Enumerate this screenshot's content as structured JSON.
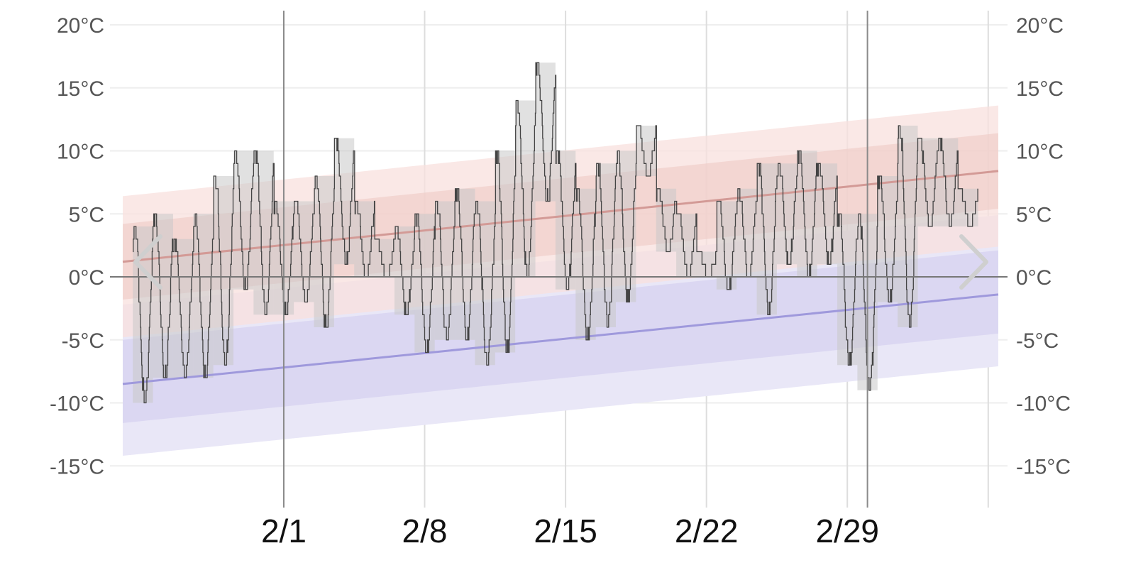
{
  "chart_data": {
    "type": "line",
    "title": "",
    "xlabel": "",
    "ylabel": "",
    "unit": "°C",
    "ylim": [
      -18,
      20.5
    ],
    "xlim": [
      "1/23",
      "3/7"
    ],
    "y_ticks": [
      {
        "value": 20,
        "label": "20°C"
      },
      {
        "value": 15,
        "label": "15°C"
      },
      {
        "value": 10,
        "label": "10°C"
      },
      {
        "value": 5,
        "label": "5°C"
      },
      {
        "value": 0,
        "label": "0°C"
      },
      {
        "value": -5,
        "label": "-5°C"
      },
      {
        "value": -10,
        "label": "-10°C"
      },
      {
        "value": -15,
        "label": "-15°C"
      }
    ],
    "x_ticks": [
      {
        "day": 9,
        "label": "2/1"
      },
      {
        "day": 16,
        "label": "2/8"
      },
      {
        "day": 23,
        "label": "2/15"
      },
      {
        "day": 30,
        "label": "2/22"
      },
      {
        "day": 37,
        "label": "2/29"
      }
    ],
    "extra_vertical_lines_day": [
      44
    ],
    "month_divider_days": [
      9,
      38
    ],
    "daily_max_normal": {
      "start": 1.2,
      "end": 8.4
    },
    "daily_max_band_inner": {
      "low_offset": -3.0,
      "high_offset": 3.0
    },
    "daily_max_band_outer": {
      "low_offset": -6.0,
      "high_offset": 5.2
    },
    "daily_min_normal": {
      "start": -8.5,
      "end": -1.4
    },
    "daily_min_band_inner": {
      "low_offset": -3.1,
      "high_offset": 3.5
    },
    "daily_min_band_outer": {
      "low_offset": -5.7,
      "high_offset": 6.3
    },
    "daily_observed": [
      {
        "day": 2,
        "min": -10,
        "max": 4
      },
      {
        "day": 3,
        "min": -8,
        "max": 5
      },
      {
        "day": 4,
        "min": -8,
        "max": 3
      },
      {
        "day": 5,
        "min": -8,
        "max": 5
      },
      {
        "day": 6,
        "min": -7,
        "max": 8
      },
      {
        "day": 7,
        "min": -1,
        "max": 10
      },
      {
        "day": 8,
        "min": -3,
        "max": 10
      },
      {
        "day": 9,
        "min": -3,
        "max": 6
      },
      {
        "day": 10,
        "min": -2,
        "max": 6
      },
      {
        "day": 11,
        "min": -4,
        "max": 8
      },
      {
        "day": 12,
        "min": 1,
        "max": 11
      },
      {
        "day": 13,
        "min": 0,
        "max": 6
      },
      {
        "day": 14,
        "min": 0,
        "max": 3
      },
      {
        "day": 15,
        "min": -3,
        "max": 4
      },
      {
        "day": 16,
        "min": -6,
        "max": 5
      },
      {
        "day": 17,
        "min": -5,
        "max": 6
      },
      {
        "day": 18,
        "min": -5,
        "max": 7
      },
      {
        "day": 19,
        "min": -7,
        "max": 6
      },
      {
        "day": 20,
        "min": -6,
        "max": 10
      },
      {
        "day": 21,
        "min": 0,
        "max": 14
      },
      {
        "day": 22,
        "min": 6,
        "max": 17
      },
      {
        "day": 23,
        "min": -1,
        "max": 10
      },
      {
        "day": 24,
        "min": -5,
        "max": 7
      },
      {
        "day": 25,
        "min": -4,
        "max": 9
      },
      {
        "day": 26,
        "min": -2,
        "max": 10
      },
      {
        "day": 27,
        "min": 8,
        "max": 12
      },
      {
        "day": 28,
        "min": 2,
        "max": 7
      },
      {
        "day": 29,
        "min": 0,
        "max": 5
      },
      {
        "day": 30,
        "min": 0,
        "max": 2
      },
      {
        "day": 31,
        "min": -1,
        "max": 6
      },
      {
        "day": 32,
        "min": 0,
        "max": 7
      },
      {
        "day": 33,
        "min": -3,
        "max": 9
      },
      {
        "day": 34,
        "min": 1,
        "max": 9
      },
      {
        "day": 35,
        "min": 0,
        "max": 10
      },
      {
        "day": 36,
        "min": 1,
        "max": 9
      },
      {
        "day": 37,
        "min": -7,
        "max": 5
      },
      {
        "day": 38,
        "min": -9,
        "max": 5
      },
      {
        "day": 39,
        "min": -2,
        "max": 8
      },
      {
        "day": 40,
        "min": -4,
        "max": 12
      },
      {
        "day": 41,
        "min": 4,
        "max": 11
      },
      {
        "day": 42,
        "min": 4,
        "max": 11
      },
      {
        "day": 43,
        "min": 4,
        "max": 7
      }
    ],
    "grid": true,
    "colors": {
      "max_band_outer": "#f8e0de",
      "max_band_inner": "#efc9c5",
      "max_line": "#d39a96",
      "min_band_outer": "#e9e7f7",
      "min_band_inner": "#d8d4f1",
      "min_line": "#9f99dc",
      "observed_bar": "#c9c9c9",
      "observed_line": "#444444",
      "grid": "#eeeeee",
      "zero_line": "#777777",
      "nav_arrow": "#cfcfcf"
    }
  },
  "nav": {
    "prev_icon": "chevron-left-icon",
    "next_icon": "chevron-right-icon"
  }
}
